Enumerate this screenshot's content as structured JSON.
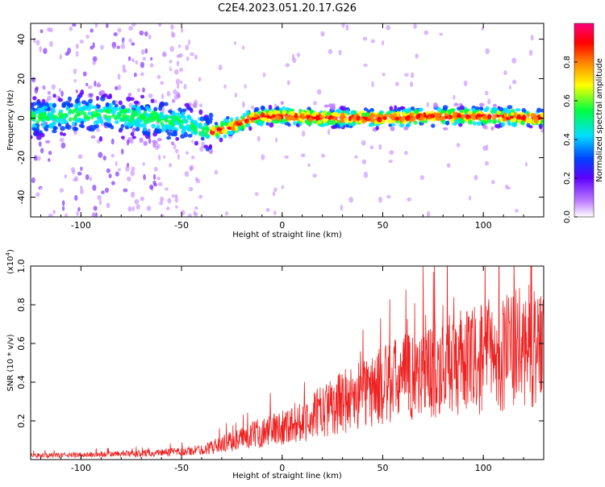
{
  "title": "C2E4.2023.051.20.17.G26",
  "chart_data": [
    {
      "type": "heatmap",
      "xlabel": "Height of straight line (km)",
      "ylabel": "Frequency (Hz)",
      "xlim": [
        -125,
        130
      ],
      "ylim": [
        -50,
        48
      ],
      "xticks": [
        -100,
        -50,
        0,
        50,
        100
      ],
      "yticks": [
        -40,
        -20,
        0,
        20,
        40
      ],
      "colorbar": {
        "label": "Normalized spectral amplitude",
        "range": [
          0,
          1
        ],
        "ticks": [
          "0.0",
          "0.2",
          "0.4",
          "0.6",
          "0.8"
        ],
        "colors": [
          "#ffffff",
          "#c080ff",
          "#6000ff",
          "#0040ff",
          "#00e0ff",
          "#00ff40",
          "#ffff00",
          "#ff8000",
          "#ff0000",
          "#ff0080"
        ]
      },
      "ridge": {
        "x": [
          -125,
          -100,
          -75,
          -50,
          -45,
          -40,
          -35,
          -30,
          -25,
          -20,
          -15,
          -10,
          0,
          25,
          50,
          75,
          100,
          130
        ],
        "y": [
          0,
          2,
          1,
          -2,
          -4,
          -6,
          -7,
          -6,
          -4,
          -2,
          0,
          1,
          1,
          0,
          0,
          1,
          1,
          0
        ]
      }
    },
    {
      "type": "line",
      "xlabel": "Height of straight line (km)",
      "ylabel": "SNR (10 * v/v)",
      "yscale_label": "(x10",
      "yscale_exp": "4",
      "yscale_close": ")",
      "xlim": [
        -125,
        130
      ],
      "ylim": [
        0,
        1.0
      ],
      "xticks": [
        -100,
        -50,
        0,
        50,
        100
      ],
      "yticks": [
        "0.2",
        "0.4",
        "0.6",
        "0.8",
        "1.0"
      ],
      "series_color": "#ee2222",
      "trend": {
        "x": [
          -125,
          -100,
          -75,
          -50,
          -40,
          -30,
          -20,
          -10,
          0,
          10,
          20,
          30,
          40,
          50,
          60,
          70,
          80,
          90,
          100,
          110,
          120,
          130
        ],
        "y": [
          0.02,
          0.025,
          0.03,
          0.04,
          0.05,
          0.08,
          0.11,
          0.14,
          0.17,
          0.2,
          0.25,
          0.3,
          0.34,
          0.38,
          0.42,
          0.45,
          0.48,
          0.5,
          0.52,
          0.55,
          0.58,
          0.6
        ]
      }
    }
  ]
}
